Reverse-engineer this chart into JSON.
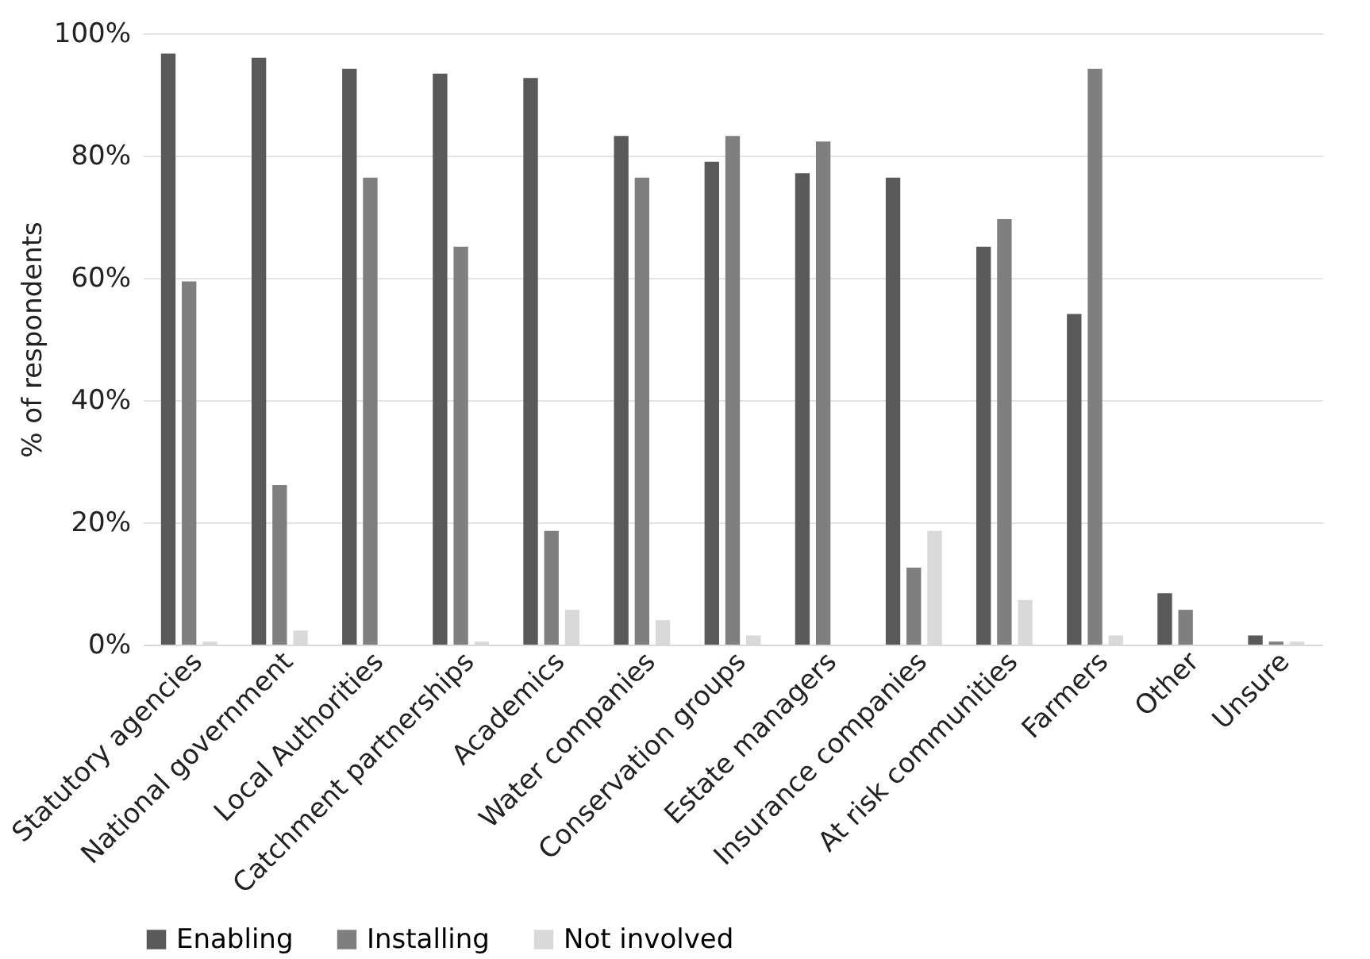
{
  "chart_data": {
    "type": "bar",
    "ylabel": "% of respondents",
    "categories": [
      "Statutory agencies",
      "National government",
      "Local Authorities",
      "Catchment partnerships",
      "Academics",
      "Water companies",
      "Conservation groups",
      "Estate managers",
      "Insurance companies",
      "At risk communities",
      "Farmers",
      "Other",
      "Unsure"
    ],
    "series": [
      {
        "name": "Enabling",
        "color": "#595959",
        "values": [
          96.7,
          96,
          94.2,
          93.4,
          92.7,
          83.2,
          79,
          77.1,
          76.4,
          65.1,
          54.1,
          8.4,
          1.5
        ]
      },
      {
        "name": "Installing",
        "color": "#7f7f7f",
        "values": [
          59.4,
          26.1,
          76.4,
          65.1,
          18.6,
          76.4,
          83.2,
          82.3,
          12.6,
          69.6,
          94.2,
          5.7,
          0.5
        ]
      },
      {
        "name": "Not involved",
        "color": "#d9d9d9",
        "values": [
          0.5,
          2.3,
          null,
          0.5,
          5.7,
          4,
          1.5,
          null,
          18.6,
          7.3,
          1.5,
          null,
          0.5
        ]
      }
    ],
    "ylim": [
      0,
      100
    ],
    "yticks": [
      {
        "value": 0,
        "label": "0%"
      },
      {
        "value": 20,
        "label": "20%"
      },
      {
        "value": 40,
        "label": "40%"
      },
      {
        "value": 60,
        "label": "60%"
      },
      {
        "value": 80,
        "label": "80%"
      },
      {
        "value": 100,
        "label": "100%"
      }
    ],
    "grid": "y",
    "legend": "bottom"
  }
}
